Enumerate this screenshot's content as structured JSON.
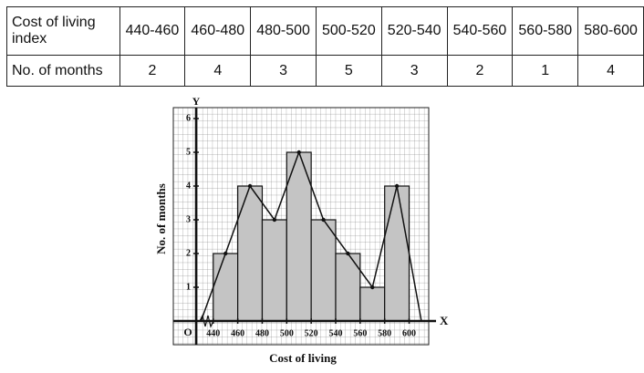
{
  "table": {
    "rows": [
      [
        "Cost of living index",
        "440-460",
        "460-480",
        "480-500",
        "500-520",
        "520-540",
        "540-560",
        "560-580",
        "580-600"
      ],
      [
        "No. of months",
        2,
        4,
        3,
        5,
        3,
        2,
        1,
        4
      ]
    ]
  },
  "chart_data": {
    "type": "histogram",
    "bins": [
      440,
      460,
      480,
      500,
      520,
      540,
      560,
      580,
      600
    ],
    "values": [
      2,
      4,
      3,
      5,
      3,
      2,
      1,
      4
    ],
    "color": "#c4c4c4",
    "polygon": true,
    "xlabel": "Cost of living",
    "ylabel": "No. of months",
    "x_axis_name": "X",
    "y_axis_name": "Y",
    "origin_label": "O",
    "xlim": [
      426,
      616
    ],
    "ylim": [
      0,
      6.4
    ],
    "xticks": [
      440,
      460,
      480,
      500,
      520,
      540,
      560,
      580,
      600
    ],
    "yticks": [
      1,
      2,
      3,
      4,
      5,
      6
    ],
    "grid": true
  }
}
